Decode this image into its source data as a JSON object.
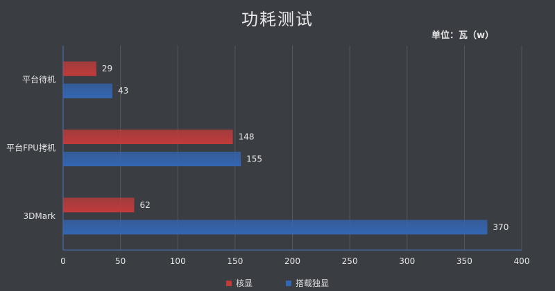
{
  "chart_data": {
    "type": "bar",
    "orientation": "horizontal",
    "title": "功耗测试",
    "unit_label": "单位：瓦（w）",
    "categories": [
      "平台待机",
      "平台FPU拷机",
      "3DMark"
    ],
    "series": [
      {
        "name": "核显",
        "values": [
          29,
          148,
          62
        ],
        "color": "#c23b3b"
      },
      {
        "name": "搭载独显",
        "values": [
          43,
          155,
          370
        ],
        "color": "#3466b3"
      }
    ],
    "xlim": [
      0,
      400
    ],
    "xticks": [
      0,
      50,
      100,
      150,
      200,
      250,
      300,
      350,
      400
    ],
    "grid": true,
    "legend_position": "bottom"
  },
  "colors": {
    "background": "#3a3d42",
    "grid": "#55585e",
    "axis": "#4a78c0",
    "text": "#e6e6e6"
  }
}
